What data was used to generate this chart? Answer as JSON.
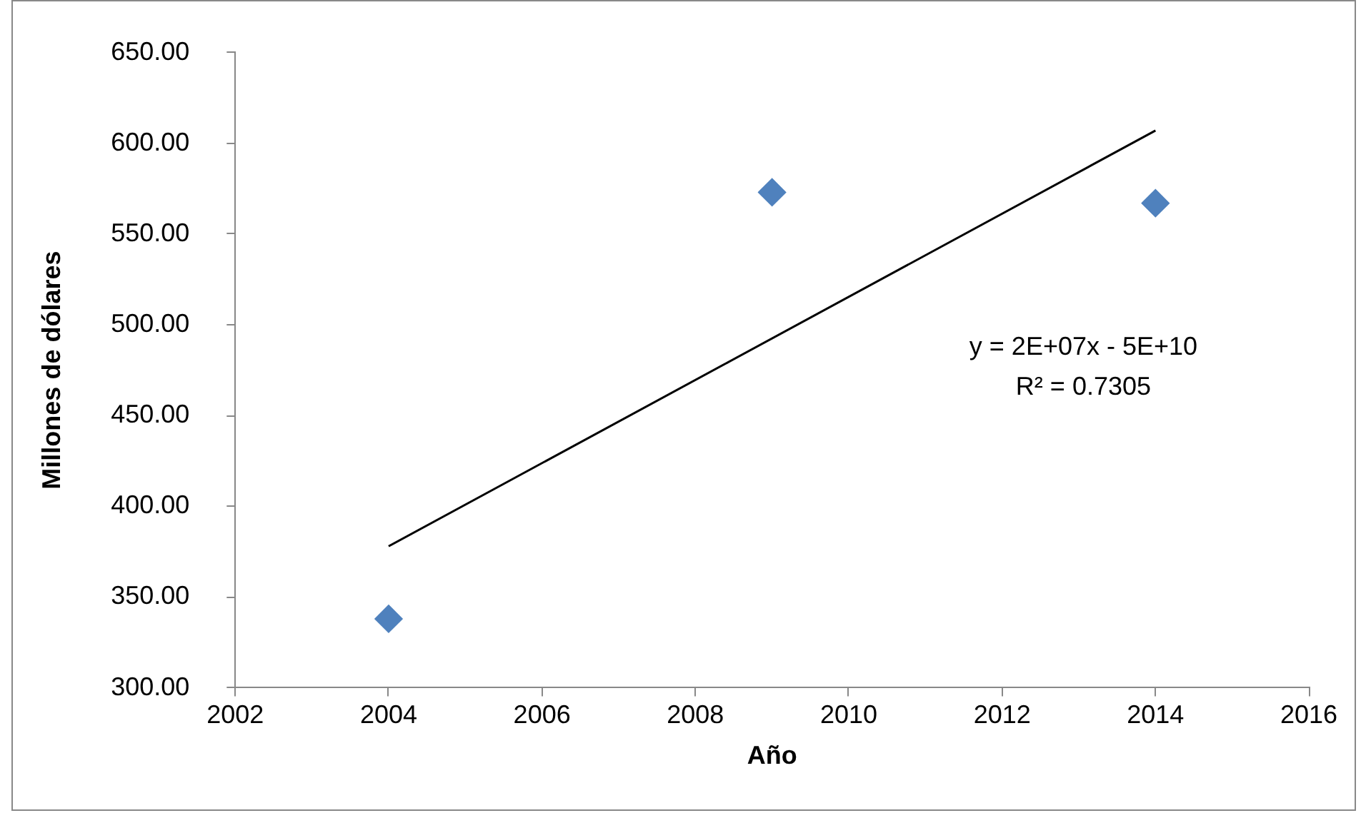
{
  "chart_data": {
    "type": "scatter",
    "xlabel": "Año",
    "ylabel": "Millones de dólares",
    "annotations": [
      "y = 2E+07x - 5E+10",
      "R² = 0.7305"
    ],
    "series": [
      {
        "type": "scatter",
        "color": "#4f81bd",
        "marker": "diamond",
        "x": [
          2004,
          2009,
          2014
        ],
        "values": [
          338,
          573,
          567
        ]
      },
      {
        "type": "line",
        "color": "#000000",
        "marker": "none",
        "line_style": "solid",
        "x": [
          2004,
          2014
        ],
        "values": [
          378,
          607
        ]
      }
    ],
    "xlim": [
      2002,
      2016
    ],
    "xticks": [
      2002,
      2004,
      2006,
      2008,
      2010,
      2012,
      2014,
      2016
    ],
    "ylim": [
      300,
      650
    ],
    "yticks": [
      {
        "value": 300,
        "label": "300.00"
      },
      {
        "value": 350,
        "label": "350.00"
      },
      {
        "value": 400,
        "label": "400.00"
      },
      {
        "value": 450,
        "label": "450.00"
      },
      {
        "value": 500,
        "label": "500.00"
      },
      {
        "value": 550,
        "label": "550.00"
      },
      {
        "value": 600,
        "label": "600.00"
      },
      {
        "value": 650,
        "label": "650.00"
      }
    ],
    "grid": false,
    "legend": false
  }
}
